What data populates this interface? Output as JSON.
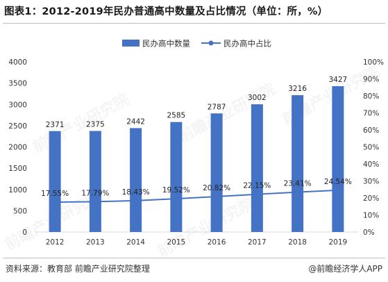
{
  "title": "图表1：2012-2019年民办普通高中数量及占比情况（单位：所，%）",
  "source": "资料来源：教育部 前瞻产业研究院整理",
  "brand": "@前瞻经济学人APP",
  "watermark": "前瞻产业研究院",
  "colors": {
    "bar": "#4472c4",
    "line": "#4472c4",
    "axis": "#d9d9d9",
    "text": "#333333"
  },
  "chart_data": {
    "type": "bar",
    "categories": [
      "2012",
      "2013",
      "2014",
      "2015",
      "2016",
      "2017",
      "2018",
      "2019"
    ],
    "series": [
      {
        "name": "民办高中数量",
        "type": "bar",
        "axis": "left",
        "values": [
          2371,
          2375,
          2442,
          2585,
          2787,
          3002,
          3216,
          3427
        ],
        "labels": [
          "2371",
          "2375",
          "2442",
          "2585",
          "2787",
          "3002",
          "3216",
          "3427"
        ]
      },
      {
        "name": "民办高中占比",
        "type": "line",
        "axis": "right",
        "values": [
          17.55,
          17.79,
          18.43,
          19.52,
          20.82,
          22.15,
          23.41,
          24.54
        ],
        "labels": [
          "17.55%",
          "17.79%",
          "18.43%",
          "19.52%",
          "20.82%",
          "22.15%",
          "23.41%",
          "24.54%"
        ]
      }
    ],
    "y_left": {
      "min": 0,
      "max": 4000,
      "ticks": [
        "0",
        "500",
        "1000",
        "1500",
        "2000",
        "2500",
        "3000",
        "3500",
        "4000"
      ]
    },
    "y_right": {
      "min": 0,
      "max": 100,
      "ticks": [
        "0%",
        "10%",
        "20%",
        "30%",
        "40%",
        "50%",
        "60%",
        "70%",
        "80%",
        "90%",
        "100%"
      ]
    },
    "legend": "top-center",
    "grid": false
  }
}
